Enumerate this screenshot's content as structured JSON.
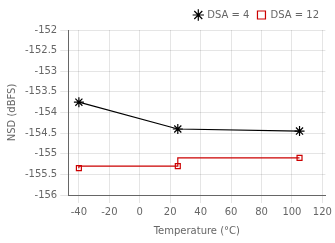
{
  "chart_data": {
    "type": "line",
    "xlabel": "Temperature (°C)",
    "ylabel": "NSD (dBFS)",
    "x": [
      -40,
      25,
      105
    ],
    "series": [
      {
        "name": "DSA = 4",
        "color": "#000000",
        "values": [
          -153.75,
          -154.4,
          -154.45
        ],
        "marker": "star",
        "line_style": "solid"
      },
      {
        "name": "DSA = 12",
        "color": "#cc0000",
        "values": [
          -155.35,
          -155.3,
          -155.1
        ],
        "marker": "square",
        "line_style": "steps-post"
      }
    ],
    "xlim": [
      -47,
      122
    ],
    "xticks": [
      -40,
      -20,
      0,
      20,
      40,
      60,
      80,
      100,
      120
    ],
    "ylim": [
      -156,
      -152
    ],
    "yticks": [
      -156,
      -155.5,
      -155,
      -154.5,
      -154,
      -153.5,
      -153,
      -152.5,
      -152
    ],
    "grid": true,
    "legend": "upper right"
  }
}
